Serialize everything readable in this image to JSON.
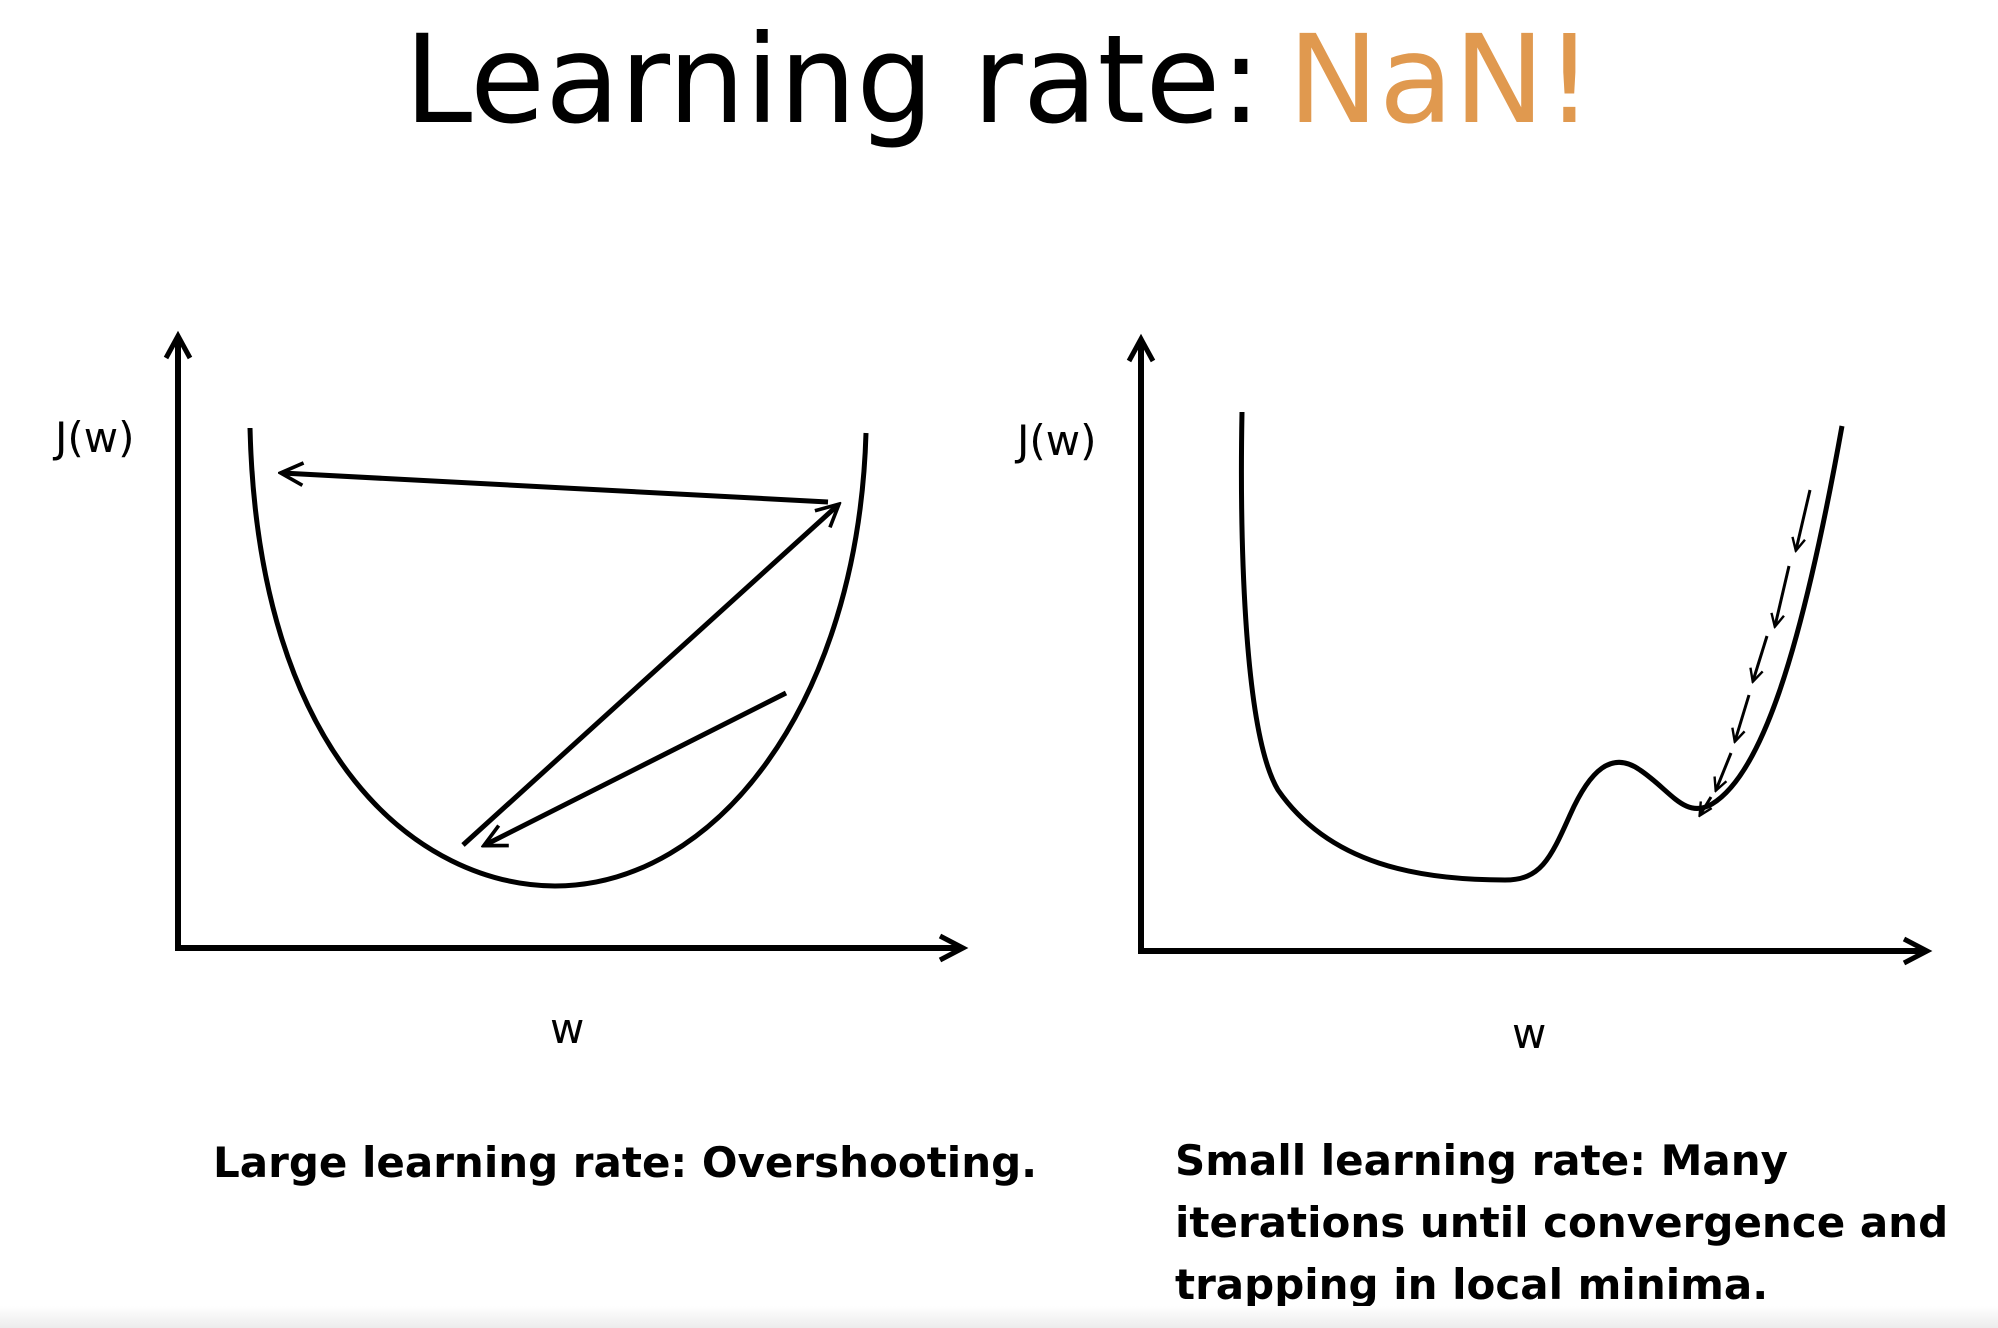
{
  "title": {
    "text": "Learning rate:",
    "accent": "NaN!",
    "accent_color": "#E0994F"
  },
  "diagrams": [
    {
      "y_label": "J(w)",
      "x_label": "w",
      "caption": "Large learning rate: Overshooting."
    },
    {
      "y_label": "J(w)",
      "x_label": "w",
      "caption": "Small learning rate: Many iterations until convergence and trapping in local minima."
    }
  ]
}
